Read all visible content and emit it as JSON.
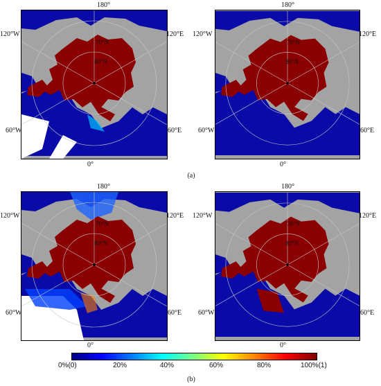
{
  "labels": {
    "top": "180°",
    "bottom": "0°",
    "left": "120°W",
    "right": "120°E",
    "left_lower": "60°W",
    "right_lower": "60°E",
    "lat70": "70°N",
    "lat80": "80°N"
  },
  "captions": {
    "a": "(a)",
    "b": "(b)"
  },
  "colorbar": {
    "ticks": [
      "0%(0)",
      "20%",
      "40%",
      "60%",
      "80%",
      "100%(1)"
    ],
    "colors": [
      "#00007f",
      "#0000ff",
      "#0080ff",
      "#00ffff",
      "#7fff7f",
      "#ffff00",
      "#ff8000",
      "#ff0000",
      "#7f0000"
    ]
  },
  "colors": {
    "ocean_low": "#0a0aa8",
    "ice_high": "#8b0000",
    "land": "#a3a3a3",
    "nodata": "#ffffff"
  }
}
